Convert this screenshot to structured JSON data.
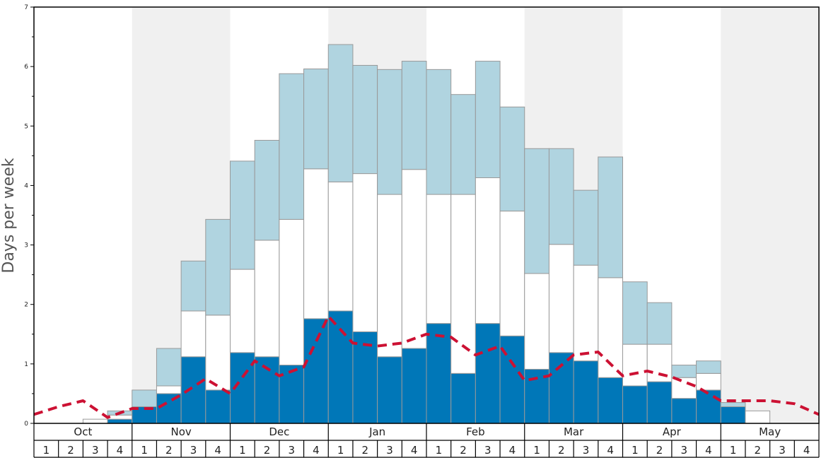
{
  "chart_data": {
    "type": "bar",
    "ylabel": "Days per week",
    "ylim": [
      0,
      7
    ],
    "yticks": [
      "0",
      "1",
      "2",
      "3",
      "4",
      "5",
      "6",
      "7"
    ],
    "months": [
      "Oct",
      "Nov",
      "Dec",
      "Jan",
      "Feb",
      "Mar",
      "Apr",
      "May"
    ],
    "week_labels": [
      "1",
      "2",
      "3",
      "4"
    ],
    "shaded_months": [
      "Nov",
      "Jan",
      "Mar",
      "May"
    ],
    "grid": false,
    "legend": "none",
    "stack_series": [
      {
        "key": "dark",
        "values": [
          0,
          0,
          0,
          0.07,
          0.28,
          0.5,
          1.12,
          0.56,
          1.19,
          1.12,
          0.98,
          1.76,
          1.89,
          1.54,
          1.12,
          1.26,
          1.68,
          0.84,
          1.68,
          1.47,
          0.91,
          1.19,
          1.05,
          0.77,
          0.63,
          0.7,
          0.42,
          0.56,
          0.28,
          0,
          0,
          0
        ]
      },
      {
        "key": "white",
        "values": [
          0,
          0,
          0.07,
          0.07,
          0,
          0.13,
          0.77,
          1.26,
          1.4,
          1.96,
          2.45,
          2.52,
          2.17,
          2.66,
          2.73,
          3.01,
          2.17,
          3.01,
          2.45,
          2.1,
          1.61,
          1.82,
          1.61,
          1.68,
          0.7,
          0.63,
          0.35,
          0.28,
          0,
          0.21,
          0,
          0
        ]
      },
      {
        "key": "light",
        "values": [
          0,
          0,
          0,
          0.07,
          0.28,
          0.63,
          0.84,
          1.61,
          1.82,
          1.68,
          2.45,
          1.68,
          2.31,
          1.82,
          2.1,
          1.82,
          2.1,
          1.68,
          1.96,
          1.75,
          2.1,
          1.61,
          1.26,
          2.03,
          1.05,
          0.7,
          0.21,
          0.21,
          0.07,
          0,
          0,
          0
        ]
      }
    ],
    "average_line": [
      0.15,
      0.28,
      0.38,
      0.1,
      0.25,
      0.25,
      0.48,
      0.75,
      0.5,
      1.05,
      0.8,
      0.95,
      1.8,
      1.35,
      1.3,
      1.35,
      1.5,
      1.45,
      1.15,
      1.3,
      0.72,
      0.8,
      1.15,
      1.2,
      0.8,
      0.88,
      0.78,
      0.62,
      0.38,
      0.38,
      0.38,
      0.33,
      0.15
    ]
  },
  "colors": {
    "dark": "#0077b8",
    "white": "#ffffff",
    "light": "#b0d4e0",
    "shade": "#f0f0f0",
    "bar_stroke": "#999999",
    "average_line": "#cc1133",
    "axis": "#000000"
  }
}
